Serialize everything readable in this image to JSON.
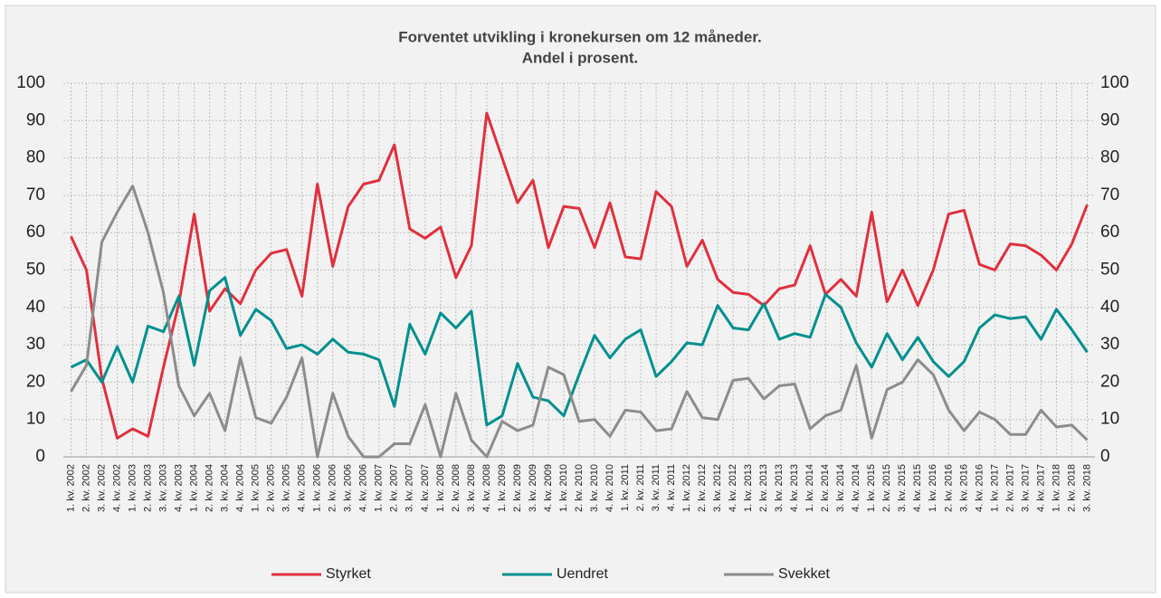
{
  "chart_data": {
    "type": "line",
    "title": [
      "Forventet utvikling i kronekursen om 12 måneder.",
      "Andel i prosent."
    ],
    "categories": [
      "1. kv. 2002",
      "2. kv. 2002",
      "3. kv. 2002",
      "4. kv. 2002",
      "1. kv. 2003",
      "2. kv. 2003",
      "3. kv. 2003",
      "4. kv. 2003",
      "1. kv. 2004",
      "2. kv. 2004",
      "3. kv. 2004",
      "4. kv. 2004",
      "1. kv. 2005",
      "2. kv. 2005",
      "3. kv. 2005",
      "4. kv. 2005",
      "1. kv. 2006",
      "2. kv. 2006",
      "3. kv. 2006",
      "4. kv. 2006",
      "1. kv. 2007",
      "2. kv. 2007",
      "3. kv. 2007",
      "4. kv. 2007",
      "1. kv. 2008",
      "2. kv. 2008",
      "3. kv. 2008",
      "4. kv. 2008",
      "1. kv. 2009",
      "2. kv. 2009",
      "3. kv. 2009",
      "4. kv. 2009",
      "1. kv. 2010",
      "2. kv. 2010",
      "3. kv. 2010",
      "4. kv. 2010",
      "1. kv. 2011",
      "2. kv. 2011",
      "3. kv. 2011",
      "4. kv. 2011",
      "1. kv. 2012",
      "2. kv. 2012",
      "3. kv. 2012",
      "4. kv. 2012",
      "1. kv. 2013",
      "2. kv. 2013",
      "3. kv. 2013",
      "4. kv. 2013",
      "1. kv. 2014",
      "2. kv. 2014",
      "3. kv. 2014",
      "4. kv. 2014",
      "1. kv. 2015",
      "2. kv. 2015",
      "3. kv. 2015",
      "4. kv. 2015",
      "1. kv. 2016",
      "2. kv. 2016",
      "3. kv. 2016",
      "4. kv. 2016",
      "1. kv. 2017",
      "2. kv. 2017",
      "3. kv. 2017",
      "4. kv. 2017",
      "1. kv. 2018",
      "2. kv. 2018",
      "3. kv. 2018"
    ],
    "series": [
      {
        "name": "Styrket",
        "color": "#e0303e",
        "values": [
          59,
          50,
          21,
          5,
          7.5,
          5.5,
          24,
          41,
          65,
          39,
          45,
          41,
          50,
          54.5,
          55.5,
          43,
          73,
          51,
          67,
          73,
          74,
          83.5,
          61,
          58.5,
          61.5,
          48,
          56.5,
          92,
          80,
          68,
          74,
          56,
          67,
          66.5,
          56,
          68,
          53.5,
          53,
          71,
          67,
          51,
          58,
          47.5,
          44,
          43.5,
          40.5,
          45,
          46,
          56.5,
          43.5,
          47.5,
          43,
          65.5,
          41.5,
          50,
          40.5,
          50,
          65,
          66,
          51.5,
          50,
          57,
          56.5,
          54,
          50,
          57,
          67.5
        ]
      },
      {
        "name": "Uendret",
        "color": "#00908f",
        "values": [
          24,
          26,
          20,
          29.5,
          20,
          35,
          33.5,
          43,
          24.5,
          44.5,
          48,
          32.5,
          39.5,
          36.5,
          29,
          30,
          27.5,
          31.5,
          28,
          27.5,
          26,
          13.5,
          35.5,
          27.5,
          38.5,
          34.5,
          39,
          8.5,
          11,
          25,
          16,
          15,
          11,
          22,
          32.5,
          26.5,
          31.5,
          34,
          21.5,
          25.5,
          30.5,
          30,
          40.5,
          34.5,
          34,
          41,
          31.5,
          33,
          32,
          43.5,
          40,
          30.5,
          24,
          33,
          26,
          32,
          25.5,
          21.5,
          25.5,
          34.5,
          38,
          37,
          37.5,
          31.5,
          39.5,
          34,
          28
        ]
      },
      {
        "name": "Svekket",
        "color": "#8c8c8c",
        "values": [
          17.5,
          24.5,
          57.5,
          65.5,
          72.5,
          60,
          44,
          19,
          11,
          17,
          7,
          26.5,
          10.5,
          9,
          16,
          26.5,
          0,
          17,
          5.5,
          0,
          0,
          3.5,
          3.5,
          14,
          0,
          17,
          4.5,
          0,
          9.5,
          7,
          8.5,
          24,
          22,
          9.5,
          10,
          5.5,
          12.5,
          12,
          7,
          7.5,
          17.5,
          10.5,
          10,
          20.5,
          21,
          15.5,
          19,
          19.5,
          7.5,
          11,
          12.5,
          24.5,
          5,
          18,
          20,
          26,
          22,
          12.5,
          7,
          12,
          10,
          6,
          6,
          12.5,
          8,
          8.5,
          4.5
        ]
      }
    ],
    "ylim": [
      0,
      100
    ],
    "yticks": [
      0,
      10,
      20,
      30,
      40,
      50,
      60,
      70,
      80,
      90,
      100
    ],
    "y2lim": [
      0,
      100
    ],
    "y2ticks": [
      0,
      10,
      20,
      30,
      40,
      50,
      60,
      70,
      80,
      90,
      100
    ],
    "grid": true,
    "legend": "bottom"
  }
}
